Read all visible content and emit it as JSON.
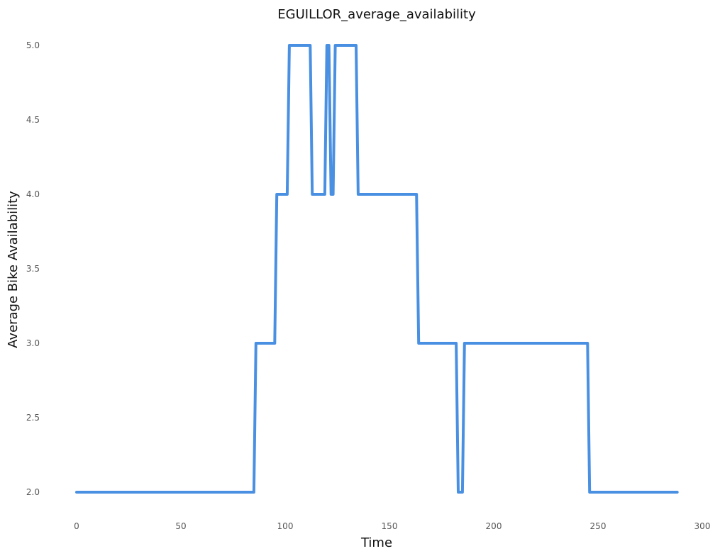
{
  "chart_data": {
    "type": "line",
    "title": "EGUILLOR_average_availability",
    "xlabel": "Time",
    "ylabel": "Average Bike Availability",
    "xlim": [
      0,
      300
    ],
    "ylim": [
      2.0,
      5.0
    ],
    "xticks": [
      "0",
      "50",
      "100",
      "150",
      "200",
      "250",
      "300"
    ],
    "yticks": [
      "2.0",
      "2.5",
      "3.0",
      "3.5",
      "4.0",
      "4.5",
      "5.0"
    ],
    "grid": false,
    "line_color": "#4a90e2",
    "series": [
      {
        "x": [
          0,
          85,
          86,
          95,
          96,
          101,
          102,
          112,
          113,
          119,
          120,
          121,
          122,
          123,
          124,
          134,
          135,
          163,
          164,
          182,
          183,
          185,
          186,
          245,
          246,
          288
        ],
        "y": [
          2,
          2,
          3,
          3,
          4,
          4,
          5,
          5,
          4,
          4,
          5,
          5,
          4,
          4,
          5,
          5,
          4,
          4,
          3,
          3,
          2,
          2,
          3,
          3,
          2,
          2
        ]
      }
    ]
  }
}
